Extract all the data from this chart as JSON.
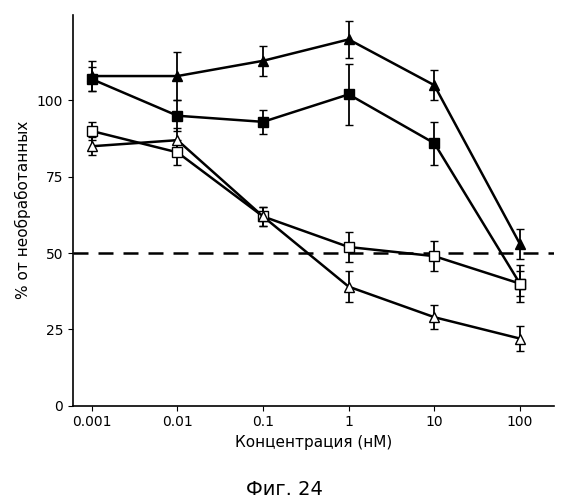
{
  "x": [
    0.001,
    0.01,
    0.1,
    1,
    10,
    100
  ],
  "filled_triangle_y": [
    108,
    108,
    113,
    120,
    105,
    53
  ],
  "filled_triangle_yerr": [
    5,
    8,
    5,
    6,
    5,
    5
  ],
  "filled_square_y": [
    107,
    95,
    93,
    102,
    86,
    40
  ],
  "filled_square_yerr": [
    4,
    5,
    4,
    10,
    7,
    6
  ],
  "open_square_y": [
    90,
    83,
    62,
    52,
    49,
    40
  ],
  "open_square_yerr": [
    3,
    4,
    3,
    5,
    5,
    4
  ],
  "open_triangle_y": [
    85,
    87,
    62,
    39,
    29,
    22
  ],
  "open_triangle_yerr": [
    3,
    4,
    3,
    5,
    4,
    4
  ],
  "xlabel": "Концентрация (нМ)",
  "ylabel": "% от необработанных",
  "title": "Фиг. 24",
  "ylim_min": 0,
  "ylim_max": 128,
  "yticks": [
    0,
    25,
    50,
    75,
    100
  ],
  "hline_y": 50,
  "xlim_min": 0.0006,
  "xlim_max": 250,
  "xtick_vals": [
    0.001,
    0.01,
    0.1,
    1,
    10,
    100
  ],
  "xtick_labels": [
    "0.001",
    "0.01",
    "0.1",
    "1",
    "10",
    "100"
  ],
  "background_color": "#ffffff",
  "markersize": 7,
  "linewidth": 1.8,
  "capsize": 3,
  "elinewidth": 1.3
}
